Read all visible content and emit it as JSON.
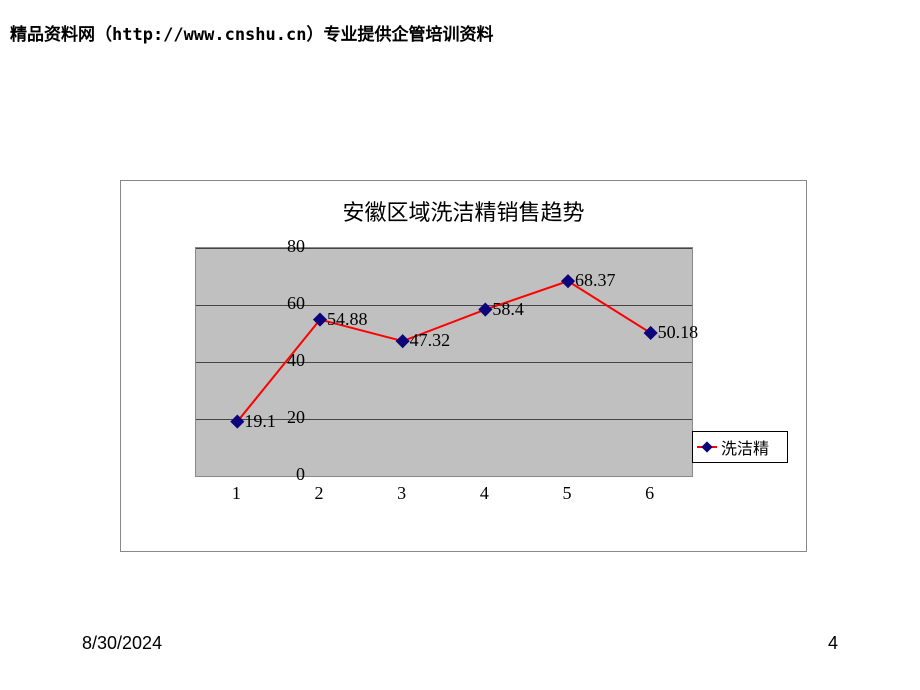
{
  "header": {
    "text": "精品资料网（http://www.cnshu.cn）专业提供企管培训资料"
  },
  "chart": {
    "type": "line",
    "title": "安徽区域洗洁精销售趋势",
    "title_fontsize": 22,
    "background_color": "#ffffff",
    "plot_bg_color": "#c0c0c0",
    "grid_color": "#444444",
    "border_color": "#888888",
    "y_axis": {
      "min": 0,
      "max": 80,
      "step": 20,
      "ticks": [
        "0",
        "20",
        "40",
        "60",
        "80"
      ]
    },
    "x_axis": {
      "categories": [
        "1",
        "2",
        "3",
        "4",
        "5",
        "6"
      ]
    },
    "series": {
      "name": "洗洁精",
      "line_color": "#ff0000",
      "line_width": 2,
      "marker_shape": "diamond",
      "marker_color": "#0d047c",
      "marker_size": 10,
      "values": [
        19.1,
        54.88,
        47.32,
        58.4,
        68.37,
        50.18
      ],
      "labels": [
        "19.1",
        "54.88",
        "47.32",
        "58.4",
        "68.37",
        "50.18"
      ]
    },
    "legend": {
      "text": "洗洁精",
      "position": "right"
    }
  },
  "footer": {
    "date": "8/30/2024",
    "page": "4"
  }
}
